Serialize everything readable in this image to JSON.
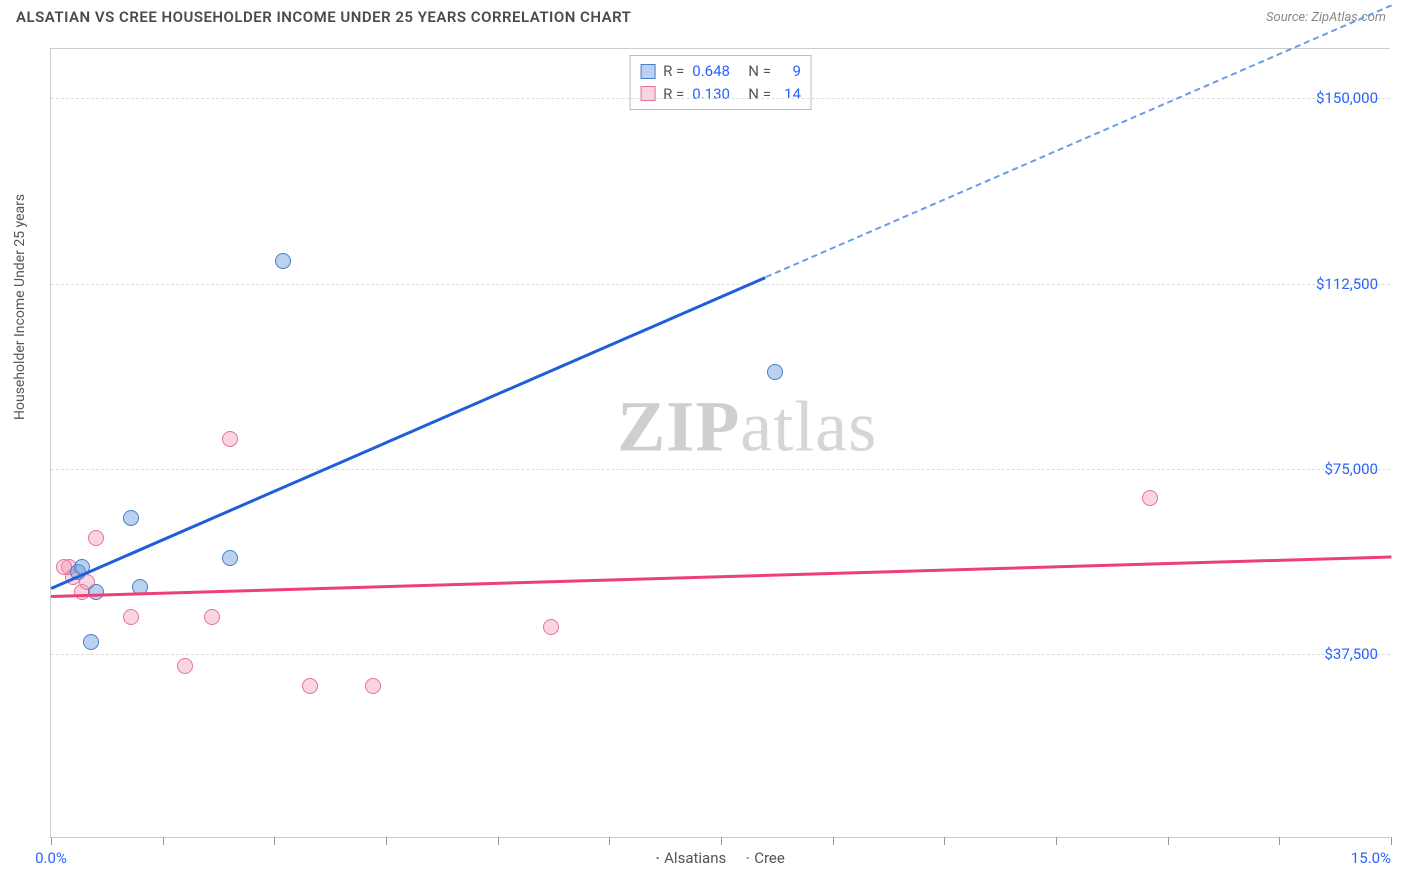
{
  "header": {
    "title": "ALSATIAN VS CREE HOUSEHOLDER INCOME UNDER 25 YEARS CORRELATION CHART",
    "source": "Source: ZipAtlas.com"
  },
  "chart": {
    "type": "scatter",
    "ylabel": "Householder Income Under 25 years",
    "xlim": [
      0,
      15
    ],
    "ylim": [
      0,
      160000
    ],
    "yticks": [
      37500,
      75000,
      112500,
      150000
    ],
    "ytick_labels": [
      "$37,500",
      "$75,000",
      "$112,500",
      "$150,000"
    ],
    "xtick_positions": [
      0,
      1.25,
      2.5,
      3.75,
      5.0,
      6.25,
      7.5,
      8.75,
      10.0,
      11.25,
      12.5,
      13.75,
      15.0
    ],
    "xtick_labels": {
      "left": "0.0%",
      "right": "15.0%"
    },
    "grid_color": "#dddddd",
    "background_color": "#ffffff",
    "series": {
      "alsatians": {
        "label": "Alsatians",
        "color_fill": "rgba(103,155,222,0.45)",
        "color_border": "#4a7ec7",
        "R": "0.648",
        "N": "9",
        "points": [
          [
            0.3,
            54000
          ],
          [
            0.35,
            55000
          ],
          [
            0.9,
            65000
          ],
          [
            0.45,
            40000
          ],
          [
            2.0,
            57000
          ],
          [
            2.6,
            117000
          ],
          [
            1.0,
            51000
          ],
          [
            8.1,
            94500
          ],
          [
            0.5,
            50000
          ]
        ],
        "trend": {
          "x1": 0,
          "y1": 51000,
          "x2": 8.0,
          "y2": 114000,
          "dash_x2": 15.0,
          "dash_y2": 169000,
          "color": "#1e5fd9"
        }
      },
      "cree": {
        "label": "Cree",
        "color_fill": "rgba(242,148,179,0.4)",
        "color_border": "#e57399",
        "R": "0.130",
        "N": "14",
        "points": [
          [
            0.25,
            53000
          ],
          [
            0.2,
            55000
          ],
          [
            0.5,
            61000
          ],
          [
            0.9,
            45000
          ],
          [
            1.5,
            35000
          ],
          [
            1.8,
            45000
          ],
          [
            2.0,
            81000
          ],
          [
            2.9,
            31000
          ],
          [
            3.6,
            31000
          ],
          [
            5.6,
            43000
          ],
          [
            12.3,
            69000
          ],
          [
            0.35,
            50000
          ],
          [
            0.15,
            55000
          ],
          [
            0.4,
            52000
          ]
        ],
        "trend": {
          "x1": 0,
          "y1": 49500,
          "x2": 15.0,
          "y2": 57500,
          "color": "#ec407a"
        }
      }
    },
    "stats_labels": {
      "R": "R =",
      "N": "N ="
    },
    "watermark": {
      "zip": "ZIP",
      "atlas": "atlas"
    }
  }
}
